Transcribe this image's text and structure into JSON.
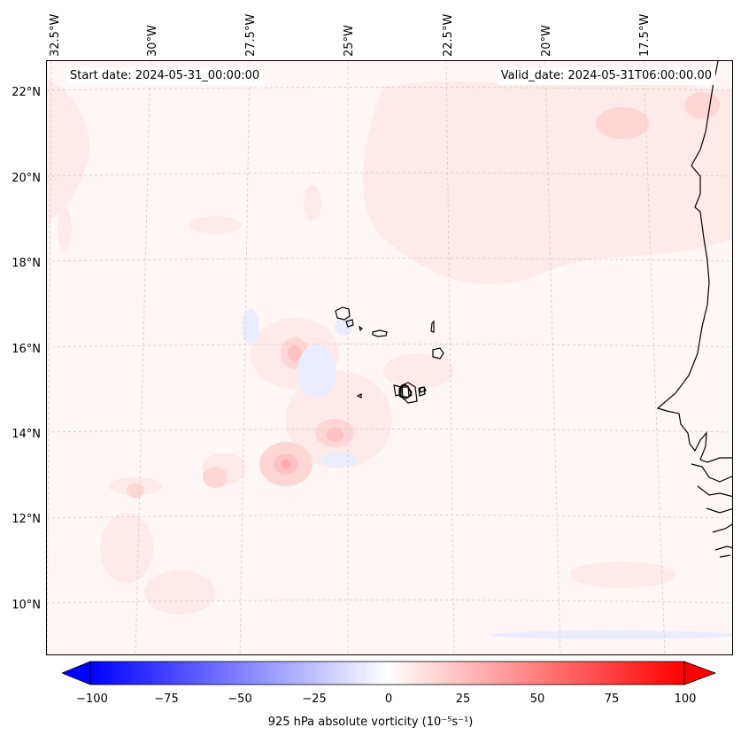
{
  "map": {
    "start_date": "Start date: 2024-05-31_00:00:00",
    "valid_date": "Valid_date: 2024-05-31T06:00:00.00",
    "lon_labels": [
      "32.5°W",
      "30°W",
      "27.5°W",
      "25°W",
      "22.5°W",
      "20°W",
      "17.5°W"
    ],
    "lat_labels": [
      "22°N",
      "20°N",
      "18°N",
      "16°N",
      "14°N",
      "12°N",
      "10°N"
    ],
    "field_colors": {
      "pale_red": "#ffecec",
      "light_red": "#ffd4d4",
      "mid_red": "#ffc0c0",
      "pale_blue": "#eef0ff",
      "light_blue": "#dfe3ff",
      "coast": "#000000"
    }
  },
  "colorbar": {
    "title": "925 hPa absolute vorticity (10⁻⁵s⁻¹)",
    "tick_labels": [
      "−100",
      "−75",
      "−50",
      "−25",
      "0",
      "25",
      "50",
      "75",
      "100"
    ],
    "range": [
      -100,
      100
    ],
    "low_color": "#0000ff",
    "mid_color": "#ffffff",
    "high_color": "#ff0000"
  }
}
